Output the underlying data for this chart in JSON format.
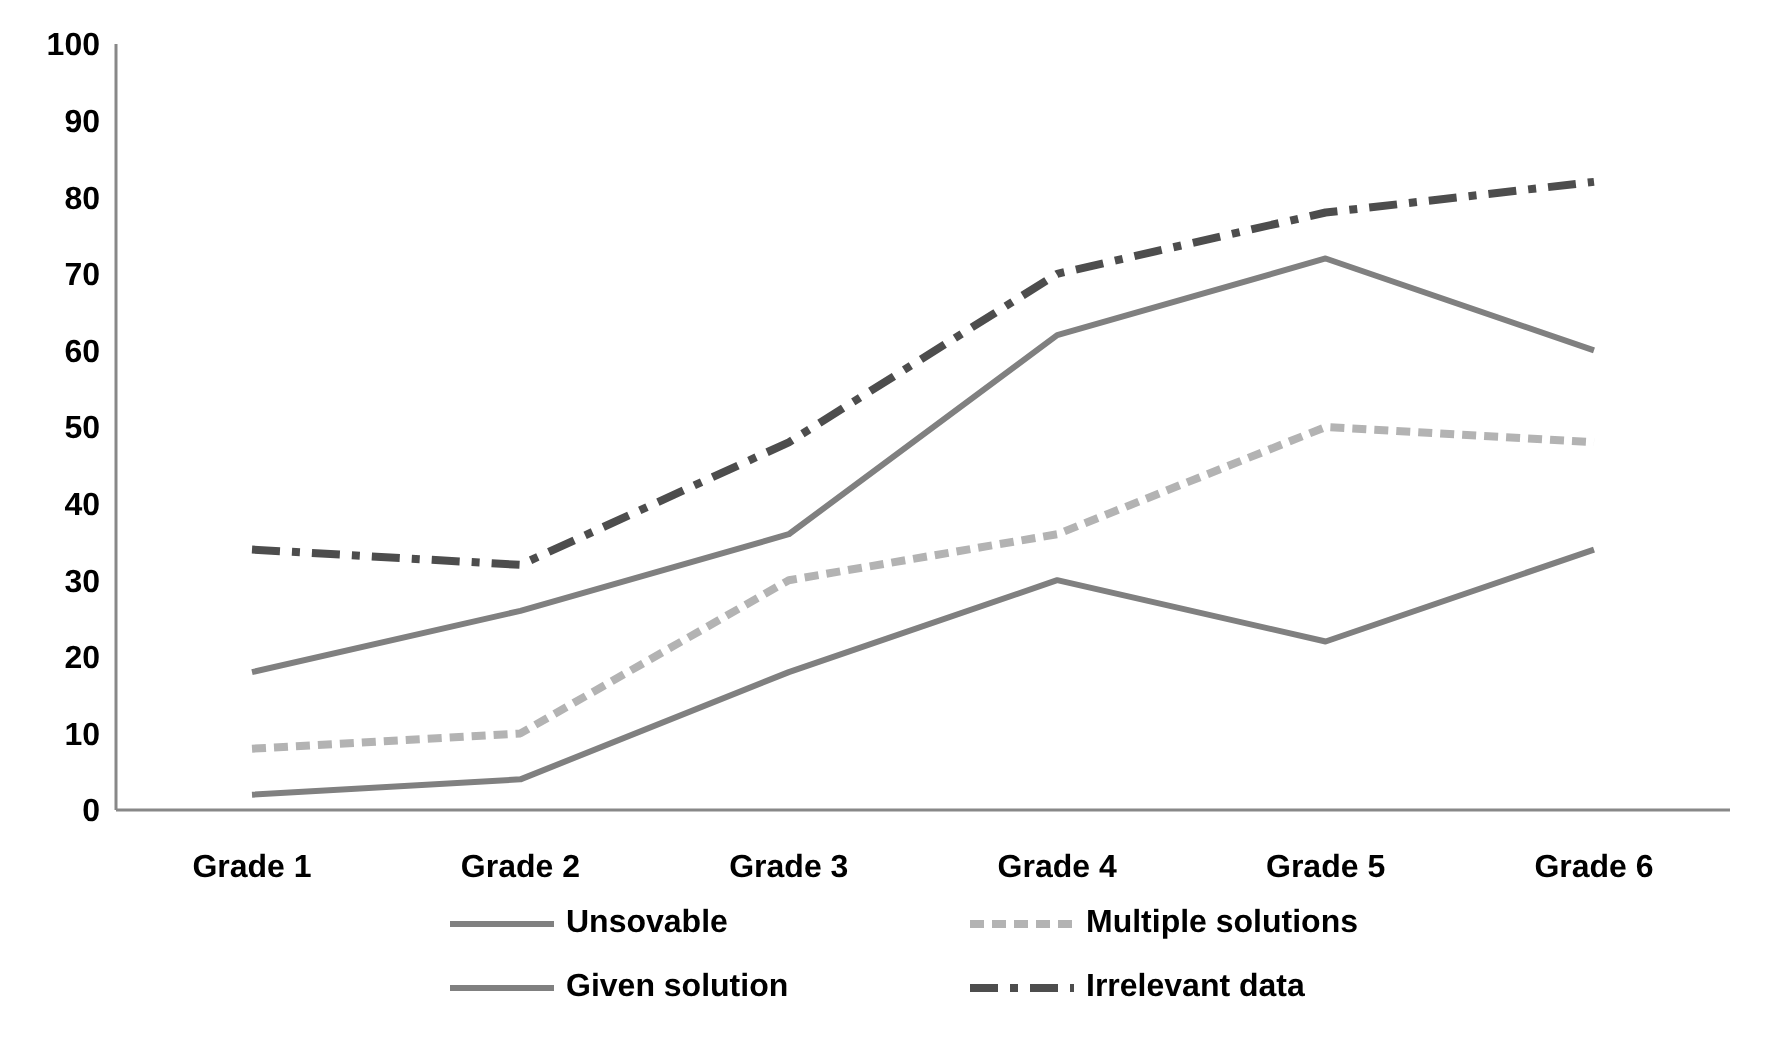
{
  "chart_data": {
    "type": "line",
    "categories": [
      "Grade 1",
      "Grade 2",
      "Grade 3",
      "Grade 4",
      "Grade 5",
      "Grade 6"
    ],
    "series": [
      {
        "name": "Unsovable",
        "color": "#808080",
        "line_style": "solid",
        "values": [
          2,
          4,
          18,
          30,
          22,
          34
        ]
      },
      {
        "name": "Multiple solutions",
        "color": "#b3b3b3",
        "line_style": "dashed",
        "values": [
          8,
          10,
          30,
          36,
          50,
          48
        ]
      },
      {
        "name": "Given solution",
        "color": "#808080",
        "line_style": "solid",
        "values": [
          18,
          26,
          36,
          62,
          72,
          60
        ]
      },
      {
        "name": "Irrelevant data",
        "color": "#4d4d4d",
        "line_style": "dashdot",
        "values": [
          34,
          32,
          48,
          70,
          78,
          82
        ]
      }
    ],
    "ylim": [
      0,
      100
    ],
    "yticks": [
      0,
      10,
      20,
      30,
      40,
      50,
      60,
      70,
      80,
      90,
      100
    ],
    "grid": false,
    "legend": "bottom",
    "marker": "none"
  }
}
